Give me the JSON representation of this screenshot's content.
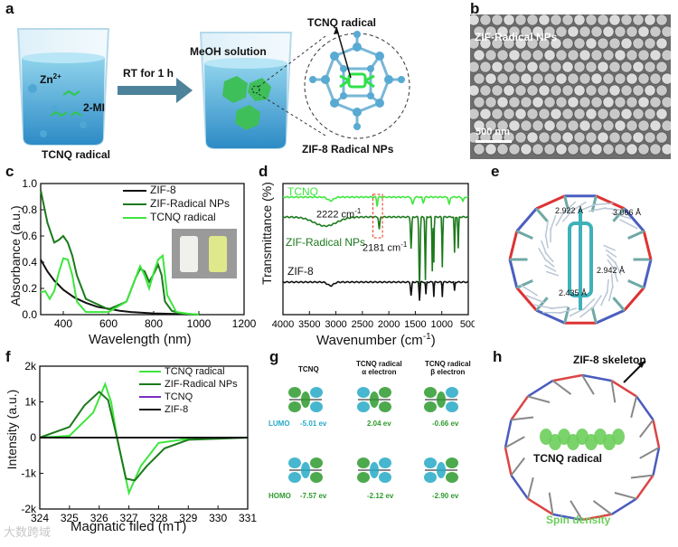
{
  "panels": [
    "a",
    "b",
    "c",
    "d",
    "e",
    "f",
    "g",
    "h"
  ],
  "a": {
    "zn": "Zn",
    "zn_sup": "2+",
    "mi": "2-MI",
    "tcnq_radical": "TCNQ radical",
    "arrow_label": "RT for 1 h",
    "meoh": "MeOH solution",
    "tcnq_radical_top": "TCNQ radical",
    "product": "ZIF-8 Radical NPs"
  },
  "b": {
    "title": "ZIF-Radical NPs",
    "scale": "500 nm"
  },
  "c": {
    "ylabel": "Absorbance (a.u.)",
    "xlabel": "Wavelength (nm)",
    "xticks": [
      "400",
      "600",
      "800",
      "1000",
      "1200"
    ],
    "yticks": [
      "0.0",
      "0.2",
      "0.4",
      "0.6",
      "0.8",
      "1.0"
    ],
    "legend": [
      "ZIF-8",
      "ZIF-Radical NPs",
      "TCNQ radical"
    ]
  },
  "d": {
    "ylabel": "Transmittance (%)",
    "xlabel": "Wavenumber (cm",
    "xlabel_sup": "-1",
    "xlabel_end": ")",
    "xticks": [
      "4000",
      "3500",
      "3000",
      "2500",
      "2000",
      "1500",
      "1000",
      "500"
    ],
    "labels": [
      "TCNQ",
      "ZIF-Radical NPs",
      "ZIF-8"
    ],
    "ann1": "2222 cm",
    "ann1_sup": "-1",
    "ann2": "2181 cm",
    "ann2_sup": "-1"
  },
  "e": {
    "distances": [
      "2.922 Å",
      "3.066 Å",
      "2.942 Å",
      "2.435 Å"
    ]
  },
  "f": {
    "ylabel": "Intensity (a.u.)",
    "xlabel": "Magnatic filed (mT)",
    "xticks": [
      "324",
      "325",
      "326",
      "327",
      "328",
      "329",
      "330",
      "331"
    ],
    "yticks": [
      "2k",
      "1k",
      "0",
      "-1k",
      "-2k"
    ],
    "legend": [
      "TCNQ radical",
      "ZIF-Radical NPs",
      "TCNQ",
      "ZIF-8"
    ]
  },
  "g": {
    "col1": "TCNQ",
    "col2": "TCNQ radical",
    "col2b": "α electron",
    "col3": "TCNQ radical",
    "col3b": "β electron",
    "lumo": "LUMO",
    "homo": "HOMO",
    "lumo_vals": [
      "-5.01 ev",
      "2.04 ev",
      "-0.66 ev"
    ],
    "homo_vals": [
      "-7.57 ev",
      "-2.12 ev",
      "-2.90 ev"
    ]
  },
  "h": {
    "skeleton": "ZIF-8 skeleton",
    "radical": "TCNQ radical",
    "spin": "Spin density"
  },
  "watermark": "大数跨域",
  "colors": {
    "zif8": "#111111",
    "zif_radical": "#1c7a1c",
    "tcnq_radical": "#3de63d",
    "tcnq": "#7b2fbf",
    "spin_green": "#6dce5b",
    "g_blue": "#27a9c7",
    "g_green": "#2e9a2e"
  },
  "chart_data": [
    {
      "type": "line",
      "panel": "c",
      "xlabel": "Wavelength (nm)",
      "ylabel": "Absorbance (a.u.)",
      "xlim": [
        300,
        1200
      ],
      "ylim": [
        0,
        1.0
      ],
      "series": [
        {
          "name": "ZIF-8",
          "x": [
            300,
            330,
            360,
            400,
            450,
            500,
            550,
            600,
            650,
            700,
            800,
            900,
            1000
          ],
          "y": [
            0.42,
            0.33,
            0.26,
            0.19,
            0.13,
            0.09,
            0.06,
            0.045,
            0.03,
            0.02,
            0.01,
            0.005,
            0.0
          ]
        },
        {
          "name": "ZIF-Radical NPs",
          "x": [
            300,
            330,
            360,
            380,
            400,
            420,
            440,
            460,
            500,
            600,
            680,
            720,
            740,
            760,
            780,
            800,
            820,
            835,
            850,
            880,
            920,
            960,
            1000
          ],
          "y": [
            0.95,
            0.7,
            0.55,
            0.57,
            0.6,
            0.55,
            0.45,
            0.3,
            0.12,
            0.04,
            0.1,
            0.28,
            0.35,
            0.33,
            0.25,
            0.31,
            0.38,
            0.3,
            0.1,
            0.03,
            0.01,
            0.005,
            0.0
          ]
        },
        {
          "name": "TCNQ radical",
          "x": [
            300,
            320,
            340,
            360,
            380,
            400,
            420,
            440,
            460,
            500,
            600,
            680,
            720,
            740,
            760,
            780,
            800,
            820,
            840,
            860,
            900,
            960,
            1000
          ],
          "y": [
            0.17,
            0.18,
            0.12,
            0.18,
            0.32,
            0.43,
            0.42,
            0.3,
            0.1,
            0.02,
            0.02,
            0.1,
            0.28,
            0.37,
            0.3,
            0.2,
            0.32,
            0.42,
            0.45,
            0.15,
            0.02,
            0.005,
            0.0
          ]
        }
      ]
    },
    {
      "type": "line",
      "panel": "d",
      "xlabel": "Wavenumber (cm-1)",
      "ylabel": "Transmittance (%)",
      "xlim": [
        4000,
        500
      ],
      "series": [
        {
          "name": "TCNQ"
        },
        {
          "name": "ZIF-Radical NPs"
        },
        {
          "name": "ZIF-8"
        }
      ]
    },
    {
      "type": "line",
      "panel": "f",
      "xlabel": "Magnatic filed (mT)",
      "ylabel": "Intensity (a.u.)",
      "xlim": [
        324,
        331
      ],
      "ylim": [
        -2000,
        2000
      ],
      "series": [
        {
          "name": "TCNQ radical",
          "x": [
            324,
            325,
            325.8,
            326.2,
            326.4,
            326.6,
            327.0,
            327.4,
            328,
            329,
            331
          ],
          "y": [
            0,
            50,
            700,
            1500,
            1000,
            0,
            -1550,
            -800,
            -150,
            -30,
            0
          ]
        },
        {
          "name": "ZIF-Radical NPs",
          "x": [
            324,
            325,
            325.5,
            326.0,
            326.3,
            326.6,
            326.9,
            327.2,
            327.6,
            328.2,
            329,
            331
          ],
          "y": [
            0,
            300,
            900,
            1280,
            1050,
            0,
            -1150,
            -1200,
            -800,
            -300,
            -60,
            0
          ]
        },
        {
          "name": "TCNQ",
          "x": [
            324,
            331
          ],
          "y": [
            0,
            0
          ]
        },
        {
          "name": "ZIF-8",
          "x": [
            324,
            331
          ],
          "y": [
            0,
            0
          ]
        }
      ]
    }
  ]
}
